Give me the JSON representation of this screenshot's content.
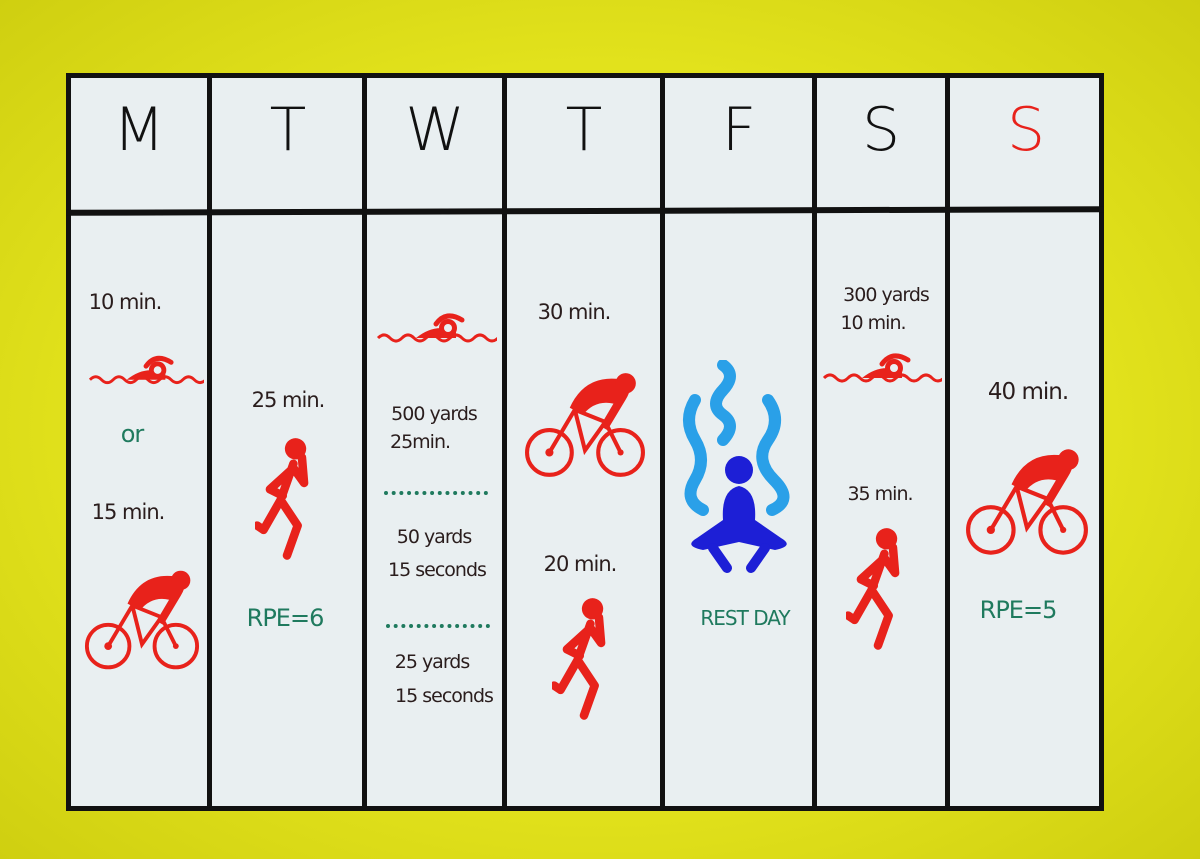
{
  "colors": {
    "background": "#e2e21c",
    "board": "#e9eff1",
    "activity_red": "#e8221b",
    "note_green": "#1f7a5e",
    "wave_blue": "#2aa0e8",
    "meditation_blue": "#1d1fd6",
    "sunday_red": "#e8221b"
  },
  "days": [
    {
      "letter": "M",
      "items": [
        {
          "text": "10 min."
        },
        {
          "icon": "swimmer-icon"
        },
        {
          "text": "or"
        },
        {
          "text": "15 min."
        },
        {
          "icon": "cyclist-icon"
        }
      ]
    },
    {
      "letter": "T",
      "items": [
        {
          "text": "25 min."
        },
        {
          "icon": "runner-icon"
        },
        {
          "text": "RPE=6"
        }
      ]
    },
    {
      "letter": "W",
      "items": [
        {
          "icon": "swimmer-icon"
        },
        {
          "text": "500 yards"
        },
        {
          "text": "25min."
        },
        {
          "text": "50 yards"
        },
        {
          "text": "15 seconds"
        },
        {
          "text": "25 yards"
        },
        {
          "text": "15 seconds"
        }
      ]
    },
    {
      "letter": "T",
      "items": [
        {
          "text": "30 min."
        },
        {
          "icon": "cyclist-icon"
        },
        {
          "text": "20 min."
        },
        {
          "icon": "runner-icon"
        }
      ]
    },
    {
      "letter": "F",
      "items": [
        {
          "icon": "meditation-icon"
        },
        {
          "text": "REST DAY"
        }
      ]
    },
    {
      "letter": "S",
      "items": [
        {
          "text": "300 yards"
        },
        {
          "text": "10 min."
        },
        {
          "icon": "swimmer-icon"
        },
        {
          "text": "35 min."
        },
        {
          "icon": "runner-icon"
        }
      ]
    },
    {
      "letter": "S",
      "items": [
        {
          "text": "40 min."
        },
        {
          "icon": "cyclist-icon"
        },
        {
          "text": "RPE=5"
        }
      ]
    }
  ]
}
